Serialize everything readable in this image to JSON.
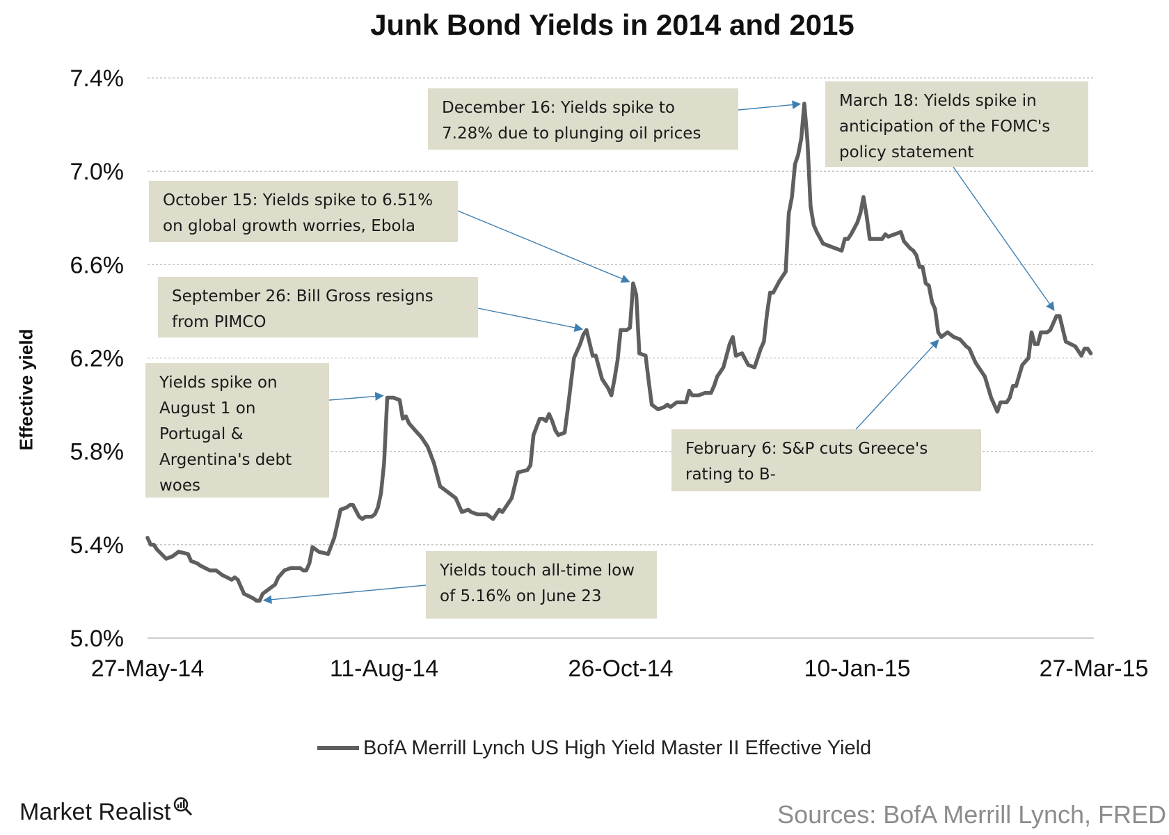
{
  "chart_data": {
    "type": "line",
    "title": "Junk Bond Yields in 2014 and 2015",
    "ylabel": "Effective yield",
    "ylim": [
      5.0,
      7.4
    ],
    "y_ticks": [
      5.0,
      5.4,
      5.8,
      6.2,
      6.6,
      7.0,
      7.4
    ],
    "y_tick_labels": [
      "5.0%",
      "5.4%",
      "5.8%",
      "6.2%",
      "6.6%",
      "7.0%",
      "7.4%"
    ],
    "xlim": [
      "2014-05-27",
      "2015-03-27"
    ],
    "x_ticks": [
      "2014-05-27",
      "2014-08-11",
      "2014-10-26",
      "2015-01-10",
      "2015-03-27"
    ],
    "x_tick_labels": [
      "27-May-14",
      "11-Aug-14",
      "26-Oct-14",
      "10-Jan-15",
      "27-Mar-15"
    ],
    "grid": "horizontal dotted",
    "legend_position": "bottom",
    "series": [
      {
        "name": "BofA Merrill Lynch US High Yield Master II Effective Yield",
        "color": "#5f5f5f",
        "points": [
          [
            "2014-05-27",
            5.43
          ],
          [
            "2014-05-28",
            5.4
          ],
          [
            "2014-05-29",
            5.4
          ],
          [
            "2014-05-30",
            5.38
          ],
          [
            "2014-06-02",
            5.34
          ],
          [
            "2014-06-04",
            5.35
          ],
          [
            "2014-06-06",
            5.37
          ],
          [
            "2014-06-09",
            5.36
          ],
          [
            "2014-06-10",
            5.33
          ],
          [
            "2014-06-12",
            5.32
          ],
          [
            "2014-06-13",
            5.31
          ],
          [
            "2014-06-16",
            5.29
          ],
          [
            "2014-06-17",
            5.29
          ],
          [
            "2014-06-18",
            5.29
          ],
          [
            "2014-06-20",
            5.27
          ],
          [
            "2014-06-23",
            5.25
          ],
          [
            "2014-06-24",
            5.26
          ],
          [
            "2014-06-25",
            5.25
          ],
          [
            "2014-06-26",
            5.22
          ],
          [
            "2014-06-27",
            5.19
          ],
          [
            "2014-06-30",
            5.17
          ],
          [
            "2014-07-01",
            5.16
          ],
          [
            "2014-07-02",
            5.16
          ],
          [
            "2014-07-03",
            5.19
          ],
          [
            "2014-07-07",
            5.23
          ],
          [
            "2014-07-08",
            5.26
          ],
          [
            "2014-07-10",
            5.29
          ],
          [
            "2014-07-12",
            5.3
          ],
          [
            "2014-07-15",
            5.3
          ],
          [
            "2014-07-16",
            5.29
          ],
          [
            "2014-07-17",
            5.29
          ],
          [
            "2014-07-18",
            5.32
          ],
          [
            "2014-07-19",
            5.39
          ],
          [
            "2014-07-21",
            5.37
          ],
          [
            "2014-07-24",
            5.36
          ],
          [
            "2014-07-26",
            5.43
          ],
          [
            "2014-07-28",
            5.55
          ],
          [
            "2014-07-30",
            5.56
          ],
          [
            "2014-07-31",
            5.57
          ],
          [
            "2014-08-01",
            5.57
          ],
          [
            "2014-08-03",
            5.52
          ],
          [
            "2014-08-04",
            5.51
          ],
          [
            "2014-08-05",
            5.52
          ],
          [
            "2014-08-07",
            5.52
          ],
          [
            "2014-08-08",
            5.53
          ],
          [
            "2014-08-09",
            5.56
          ],
          [
            "2014-08-10",
            5.62
          ],
          [
            "2014-08-11",
            5.75
          ],
          [
            "2014-08-12",
            6.03
          ],
          [
            "2014-08-14",
            6.03
          ],
          [
            "2014-08-16",
            6.02
          ],
          [
            "2014-08-17",
            5.94
          ],
          [
            "2014-08-18",
            5.95
          ],
          [
            "2014-08-19",
            5.92
          ],
          [
            "2014-08-21",
            5.89
          ],
          [
            "2014-08-23",
            5.86
          ],
          [
            "2014-08-25",
            5.82
          ],
          [
            "2014-08-27",
            5.75
          ],
          [
            "2014-08-29",
            5.65
          ],
          [
            "2014-09-01",
            5.62
          ],
          [
            "2014-09-03",
            5.6
          ],
          [
            "2014-09-05",
            5.54
          ],
          [
            "2014-09-07",
            5.55
          ],
          [
            "2014-09-08",
            5.54
          ],
          [
            "2014-09-10",
            5.53
          ],
          [
            "2014-09-13",
            5.53
          ],
          [
            "2014-09-15",
            5.51
          ],
          [
            "2014-09-17",
            5.55
          ],
          [
            "2014-09-18",
            5.54
          ],
          [
            "2014-09-20",
            5.58
          ],
          [
            "2014-09-21",
            5.6
          ],
          [
            "2014-09-23",
            5.71
          ],
          [
            "2014-09-26",
            5.72
          ],
          [
            "2014-09-27",
            5.74
          ],
          [
            "2014-09-28",
            5.87
          ],
          [
            "2014-09-30",
            5.94
          ],
          [
            "2014-10-01",
            5.94
          ],
          [
            "2014-10-02",
            5.93
          ],
          [
            "2014-10-03",
            5.96
          ],
          [
            "2014-10-04",
            5.93
          ],
          [
            "2014-10-05",
            5.89
          ],
          [
            "2014-10-06",
            5.87
          ],
          [
            "2014-10-08",
            5.88
          ],
          [
            "2014-10-09",
            5.98
          ],
          [
            "2014-10-11",
            6.2
          ],
          [
            "2014-10-13",
            6.26
          ],
          [
            "2014-10-14",
            6.3
          ],
          [
            "2014-10-15",
            6.32
          ],
          [
            "2014-10-17",
            6.21
          ],
          [
            "2014-10-18",
            6.21
          ],
          [
            "2014-10-20",
            6.11
          ],
          [
            "2014-10-22",
            6.07
          ],
          [
            "2014-10-23",
            6.04
          ],
          [
            "2014-10-24",
            6.11
          ],
          [
            "2014-10-25",
            6.19
          ],
          [
            "2014-10-26",
            6.32
          ],
          [
            "2014-10-28",
            6.32
          ],
          [
            "2014-10-29",
            6.33
          ],
          [
            "2014-10-30",
            6.52
          ],
          [
            "2014-10-31",
            6.47
          ],
          [
            "2014-11-01",
            6.22
          ],
          [
            "2014-11-03",
            6.21
          ],
          [
            "2014-11-04",
            6.1
          ],
          [
            "2014-11-05",
            6.0
          ],
          [
            "2014-11-07",
            5.98
          ],
          [
            "2014-11-09",
            5.99
          ],
          [
            "2014-11-10",
            6.0
          ],
          [
            "2014-11-11",
            5.99
          ],
          [
            "2014-11-13",
            6.01
          ],
          [
            "2014-11-15",
            6.01
          ],
          [
            "2014-11-16",
            6.01
          ],
          [
            "2014-11-17",
            6.06
          ],
          [
            "2014-11-18",
            6.04
          ],
          [
            "2014-11-20",
            6.04
          ],
          [
            "2014-11-22",
            6.05
          ],
          [
            "2014-11-24",
            6.05
          ],
          [
            "2014-11-25",
            6.08
          ],
          [
            "2014-11-26",
            6.12
          ],
          [
            "2014-11-28",
            6.16
          ],
          [
            "2014-11-30",
            6.26
          ],
          [
            "2014-12-01",
            6.29
          ],
          [
            "2014-12-02",
            6.21
          ],
          [
            "2014-12-04",
            6.22
          ],
          [
            "2014-12-06",
            6.17
          ],
          [
            "2014-12-08",
            6.16
          ],
          [
            "2014-12-10",
            6.24
          ],
          [
            "2014-12-11",
            6.27
          ],
          [
            "2014-12-12",
            6.39
          ],
          [
            "2014-12-13",
            6.48
          ],
          [
            "2014-12-14",
            6.48
          ],
          [
            "2014-12-16",
            6.53
          ],
          [
            "2014-12-18",
            6.57
          ],
          [
            "2014-12-19",
            6.82
          ],
          [
            "2014-12-20",
            6.89
          ],
          [
            "2014-12-21",
            7.03
          ],
          [
            "2014-12-22",
            7.07
          ],
          [
            "2014-12-23",
            7.14
          ],
          [
            "2014-12-24",
            7.29
          ],
          [
            "2014-12-25",
            7.13
          ],
          [
            "2014-12-26",
            6.85
          ],
          [
            "2014-12-27",
            6.77
          ],
          [
            "2014-12-28",
            6.74
          ],
          [
            "2014-12-30",
            6.69
          ],
          [
            "2015-01-01",
            6.68
          ],
          [
            "2015-01-03",
            6.67
          ],
          [
            "2015-01-05",
            6.66
          ],
          [
            "2015-01-06",
            6.71
          ],
          [
            "2015-01-07",
            6.71
          ],
          [
            "2015-01-08",
            6.73
          ],
          [
            "2015-01-10",
            6.78
          ],
          [
            "2015-01-11",
            6.82
          ],
          [
            "2015-01-12",
            6.89
          ],
          [
            "2015-01-13",
            6.81
          ],
          [
            "2015-01-14",
            6.71
          ],
          [
            "2015-01-16",
            6.71
          ],
          [
            "2015-01-18",
            6.71
          ],
          [
            "2015-01-19",
            6.73
          ],
          [
            "2015-01-20",
            6.72
          ],
          [
            "2015-01-22",
            6.73
          ],
          [
            "2015-01-24",
            6.74
          ],
          [
            "2015-01-25",
            6.7
          ],
          [
            "2015-01-27",
            6.67
          ],
          [
            "2015-01-28",
            6.66
          ],
          [
            "2015-01-29",
            6.64
          ],
          [
            "2015-01-30",
            6.59
          ],
          [
            "2015-01-31",
            6.59
          ],
          [
            "2015-02-01",
            6.52
          ],
          [
            "2015-02-02",
            6.51
          ],
          [
            "2015-02-03",
            6.44
          ],
          [
            "2015-02-04",
            6.41
          ],
          [
            "2015-02-05",
            6.31
          ],
          [
            "2015-02-06",
            6.29
          ],
          [
            "2015-02-08",
            6.31
          ],
          [
            "2015-02-10",
            6.29
          ],
          [
            "2015-02-12",
            6.28
          ],
          [
            "2015-02-14",
            6.25
          ],
          [
            "2015-02-15",
            6.24
          ],
          [
            "2015-02-17",
            6.18
          ],
          [
            "2015-02-20",
            6.12
          ],
          [
            "2015-02-22",
            6.03
          ],
          [
            "2015-02-24",
            5.97
          ],
          [
            "2015-02-25",
            6.01
          ],
          [
            "2015-02-27",
            6.01
          ],
          [
            "2015-02-28",
            6.03
          ],
          [
            "2015-03-01",
            6.08
          ],
          [
            "2015-03-02",
            6.08
          ],
          [
            "2015-03-04",
            6.17
          ],
          [
            "2015-03-06",
            6.2
          ],
          [
            "2015-03-07",
            6.31
          ],
          [
            "2015-03-08",
            6.26
          ],
          [
            "2015-03-09",
            6.26
          ],
          [
            "2015-03-10",
            6.31
          ],
          [
            "2015-03-12",
            6.31
          ],
          [
            "2015-03-13",
            6.32
          ],
          [
            "2015-03-15",
            6.38
          ],
          [
            "2015-03-16",
            6.38
          ],
          [
            "2015-03-18",
            6.27
          ],
          [
            "2015-03-21",
            6.25
          ],
          [
            "2015-03-23",
            6.21
          ],
          [
            "2015-03-24",
            6.24
          ],
          [
            "2015-03-25",
            6.24
          ],
          [
            "2015-03-26",
            6.22
          ]
        ]
      }
    ],
    "annotations": [
      {
        "text": "Yields touch all-time low\nof 5.16% on June 23",
        "target": [
          "2014-07-02",
          5.16
        ]
      },
      {
        "text": "Yields spike on\nAugust 1 on\nPortugal &\nArgentina's debt\nwoes",
        "target": [
          "2014-08-12",
          6.04
        ]
      },
      {
        "text": "September  26: Bill Gross resigns\nfrom PIMCO",
        "target": [
          "2014-10-15",
          6.32
        ]
      },
      {
        "text": "October 15: Yields spike to 6.51%\non global growth worries, Ebola",
        "target": [
          "2014-10-30",
          6.52
        ]
      },
      {
        "text": "December  16: Yields spike to\n7.28% due to plunging oil prices",
        "target": [
          "2014-12-24",
          7.29
        ]
      },
      {
        "text": "February 6: S&P cuts Greece's\nrating to B-",
        "target": [
          "2015-02-06",
          6.29
        ]
      },
      {
        "text": "March 18: Yields spike in\nanticipation of the FOMC's\npolicy statement",
        "target": [
          "2015-03-15",
          6.39
        ]
      }
    ]
  },
  "legend": {
    "label": "BofA Merrill Lynch US High Yield Master II Effective Yield"
  },
  "brand": "Market Realist",
  "source": "Sources: BofA Merrill Lynch, FRED",
  "colors": {
    "line": "#5f5f5f",
    "annotation_bg": "#dedccb",
    "arrow": "#3f7fb0",
    "grid": "#bfbfbf"
  }
}
